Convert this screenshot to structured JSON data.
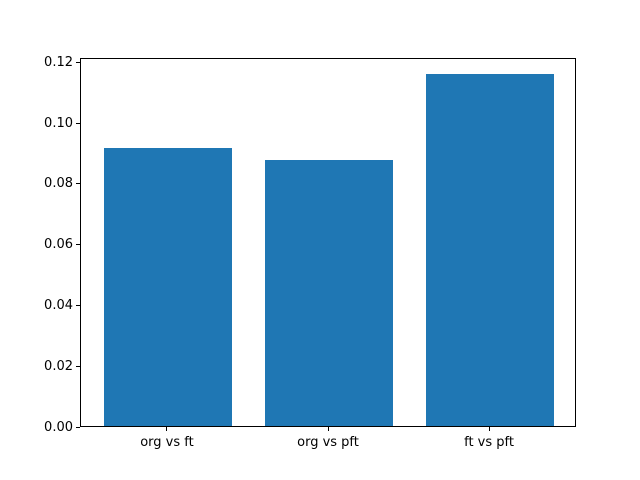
{
  "chart_data": {
    "type": "bar",
    "categories": [
      "org vs ft",
      "org vs pft",
      "ft vs pft"
    ],
    "values": [
      0.0914,
      0.0875,
      0.1157
    ],
    "title": "",
    "xlabel": "",
    "ylabel": "",
    "ylim": [
      0,
      0.1215
    ],
    "yticks": [
      0.0,
      0.02,
      0.04,
      0.06,
      0.08,
      0.1,
      0.12
    ],
    "ytick_labels": [
      "0.00",
      "0.02",
      "0.04",
      "0.06",
      "0.08",
      "0.10",
      "0.12"
    ],
    "bar_color": "#1f77b4",
    "spine_color": "#000000",
    "background_color": "#ffffff",
    "grid": false,
    "legend": null
  }
}
